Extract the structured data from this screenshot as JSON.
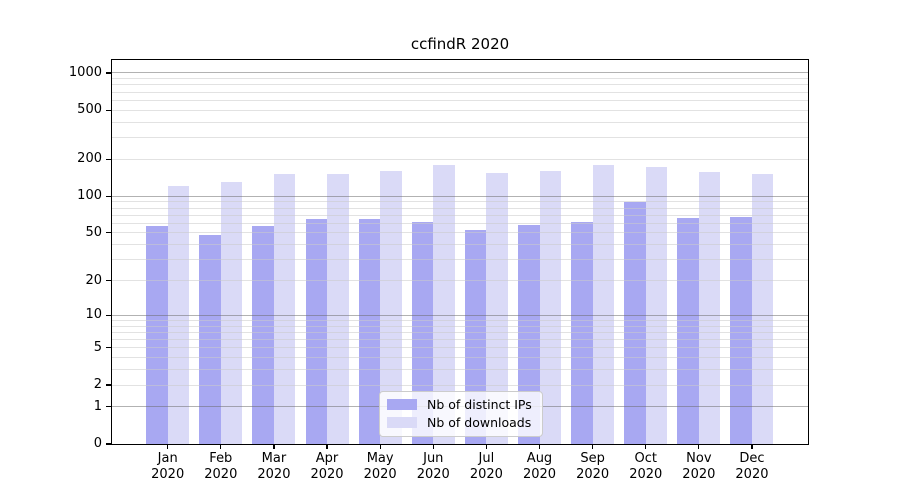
{
  "chart_data": {
    "type": "bar",
    "title": "ccfindR 2020",
    "x_months": [
      "Jan",
      "Feb",
      "Mar",
      "Apr",
      "May",
      "Jun",
      "Jul",
      "Aug",
      "Sep",
      "Oct",
      "Nov",
      "Dec"
    ],
    "x_year": "2020",
    "series": [
      {
        "name": "Nb of distinct IPs",
        "color": "#a8a8f2",
        "values": [
          57,
          48,
          57,
          65,
          65,
          61,
          53,
          58,
          61,
          90,
          66,
          67
        ]
      },
      {
        "name": "Nb of downloads",
        "color": "#dadaf7",
        "values": [
          121,
          131,
          152,
          153,
          161,
          181,
          155,
          160,
          180,
          173,
          158,
          153
        ]
      }
    ],
    "y_scale": "log1p",
    "y_ticks": [
      0,
      1,
      2,
      5,
      10,
      20,
      50,
      100,
      200,
      500,
      1000
    ],
    "y_major_gridlines": [
      1,
      10,
      100,
      1000
    ],
    "grid": true,
    "legend_position": "lower center",
    "colors": {
      "grid_major": "#b0b0b0",
      "grid_minor": "#e2e2e2",
      "spine": "#000000",
      "text": "#000000",
      "background": "#ffffff"
    }
  }
}
